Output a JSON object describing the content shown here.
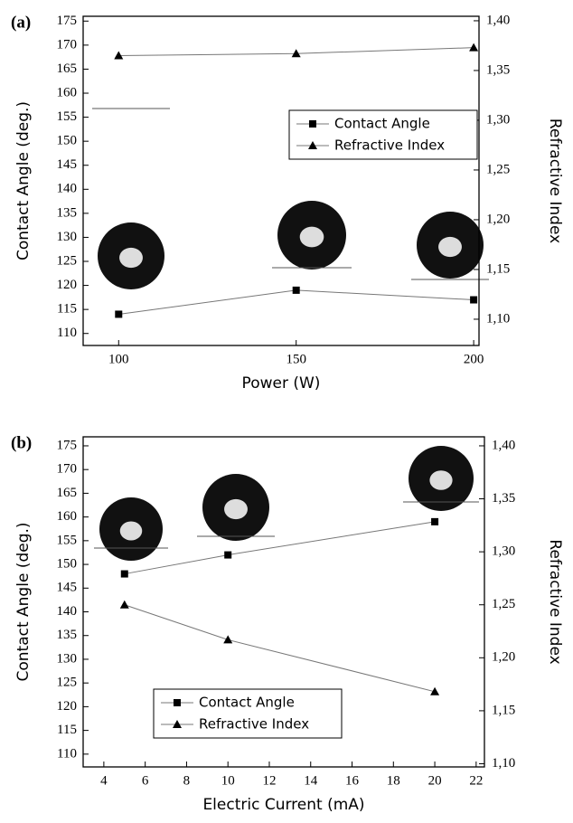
{
  "chart_data": [
    {
      "type": "line",
      "panel_label": "(a)",
      "x_label": "Power (W)",
      "y_label": "Contact Angle (deg.)",
      "y2_label": "Refractive Index",
      "x": [
        100,
        150,
        200
      ],
      "xlim": [
        90,
        201.5
      ],
      "xticks": [
        100,
        150,
        200
      ],
      "ylim": [
        107.5,
        176
      ],
      "yticks": [
        110,
        115,
        120,
        125,
        130,
        135,
        140,
        145,
        150,
        155,
        160,
        165,
        170,
        175
      ],
      "y2lim": [
        1.0736,
        1.4045
      ],
      "y2ticks": [
        {
          "value": 1.1,
          "label": "1,10"
        },
        {
          "value": 1.15,
          "label": "1,15"
        },
        {
          "value": 1.2,
          "label": "1,20"
        },
        {
          "value": 1.25,
          "label": "1,25"
        },
        {
          "value": 1.3,
          "label": "1,30"
        },
        {
          "value": 1.35,
          "label": "1,35"
        },
        {
          "value": 1.4,
          "label": "1,40"
        }
      ],
      "legend": "center right",
      "series": [
        {
          "name": "Contact Angle",
          "color": "#000000",
          "marker": "square",
          "values": [
            114,
            119,
            117
          ]
        },
        {
          "name": "Refractive Index",
          "color": "#000000",
          "marker": "triangle",
          "axis": "y2",
          "values": [
            1.365,
            1.367,
            1.373
          ]
        }
      ]
    },
    {
      "type": "line",
      "panel_label": "(b)",
      "x_label": "Electric Current (mA)",
      "y_label": "Contact Angle (deg.)",
      "y2_label": "Refractive Index",
      "x": [
        5,
        10,
        20
      ],
      "xlim": [
        3,
        22.4
      ],
      "xticks": [
        4,
        6,
        8,
        10,
        12,
        14,
        16,
        18,
        20,
        22
      ],
      "ylim": [
        107.3,
        176.9
      ],
      "yticks": [
        110,
        115,
        120,
        125,
        130,
        135,
        140,
        145,
        150,
        155,
        160,
        165,
        170,
        175
      ],
      "y2lim": [
        1.097,
        1.4085
      ],
      "y2ticks": [
        {
          "value": 1.1,
          "label": "1,10"
        },
        {
          "value": 1.15,
          "label": "1,15"
        },
        {
          "value": 1.2,
          "label": "1,20"
        },
        {
          "value": 1.25,
          "label": "1,25"
        },
        {
          "value": 1.3,
          "label": "1,30"
        },
        {
          "value": 1.35,
          "label": "1,35"
        },
        {
          "value": 1.4,
          "label": "1,40"
        }
      ],
      "legend": "lower center",
      "series": [
        {
          "name": "Contact Angle",
          "color": "#000000",
          "marker": "square",
          "values": [
            148,
            152,
            159
          ]
        },
        {
          "name": "Refractive Index",
          "color": "#000000",
          "marker": "triangle",
          "axis": "y2",
          "values": [
            1.25,
            1.217,
            1.168
          ]
        }
      ]
    }
  ]
}
